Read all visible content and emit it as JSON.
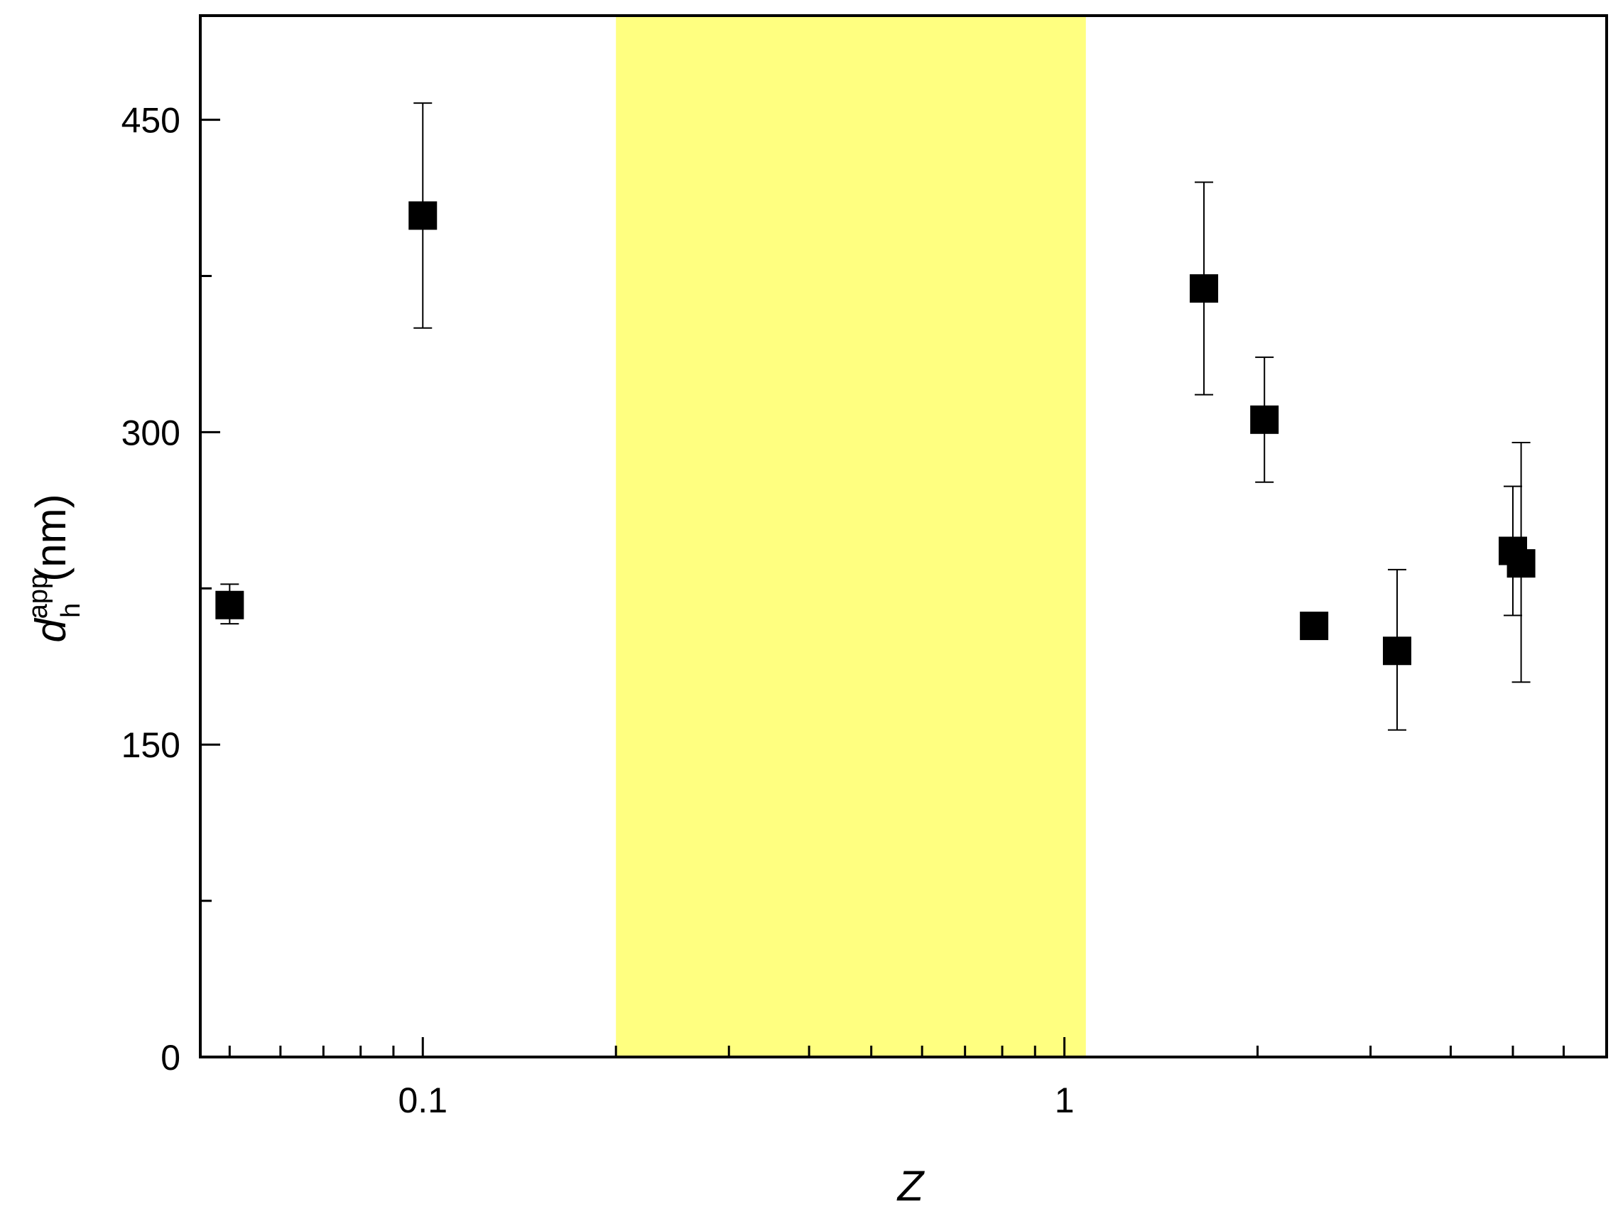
{
  "chart_data": {
    "type": "scatter",
    "x_scale": "log",
    "xlabel": "Z",
    "ylabel": {
      "main": "d",
      "sub": "h",
      "sup": "app",
      "unit": "(nm)"
    },
    "xlim": [
      0.045,
      7.0
    ],
    "ylim": [
      0,
      500
    ],
    "x_ticks": [
      {
        "value": 0.1,
        "label": "0.1"
      },
      {
        "value": 1,
        "label": "1"
      }
    ],
    "y_ticks": [
      {
        "value": 0,
        "label": "0"
      },
      {
        "value": 150,
        "label": "150"
      },
      {
        "value": 300,
        "label": "300"
      },
      {
        "value": 450,
        "label": "450"
      }
    ],
    "y_minor_ticks": [
      75,
      225,
      375
    ],
    "shaded_region": {
      "x_start": 0.2,
      "x_end": 1.08,
      "color": "#ffff80"
    },
    "series": [
      {
        "marker": "square",
        "color": "#000000",
        "points": [
          {
            "x": 0.05,
            "y": 217,
            "err_low": 208,
            "err_high": 227
          },
          {
            "x": 0.1,
            "y": 404,
            "err_low": 350,
            "err_high": 458
          },
          {
            "x": 1.65,
            "y": 369,
            "err_low": 318,
            "err_high": 420
          },
          {
            "x": 2.05,
            "y": 306,
            "err_low": 276,
            "err_high": 336
          },
          {
            "x": 2.45,
            "y": 207
          },
          {
            "x": 3.3,
            "y": 195,
            "err_low": 157,
            "err_high": 234
          },
          {
            "x": 5.0,
            "y": 243,
            "err_low": 212,
            "err_high": 274
          },
          {
            "x": 5.15,
            "y": 237,
            "err_low": 180,
            "err_high": 295
          }
        ]
      }
    ]
  }
}
